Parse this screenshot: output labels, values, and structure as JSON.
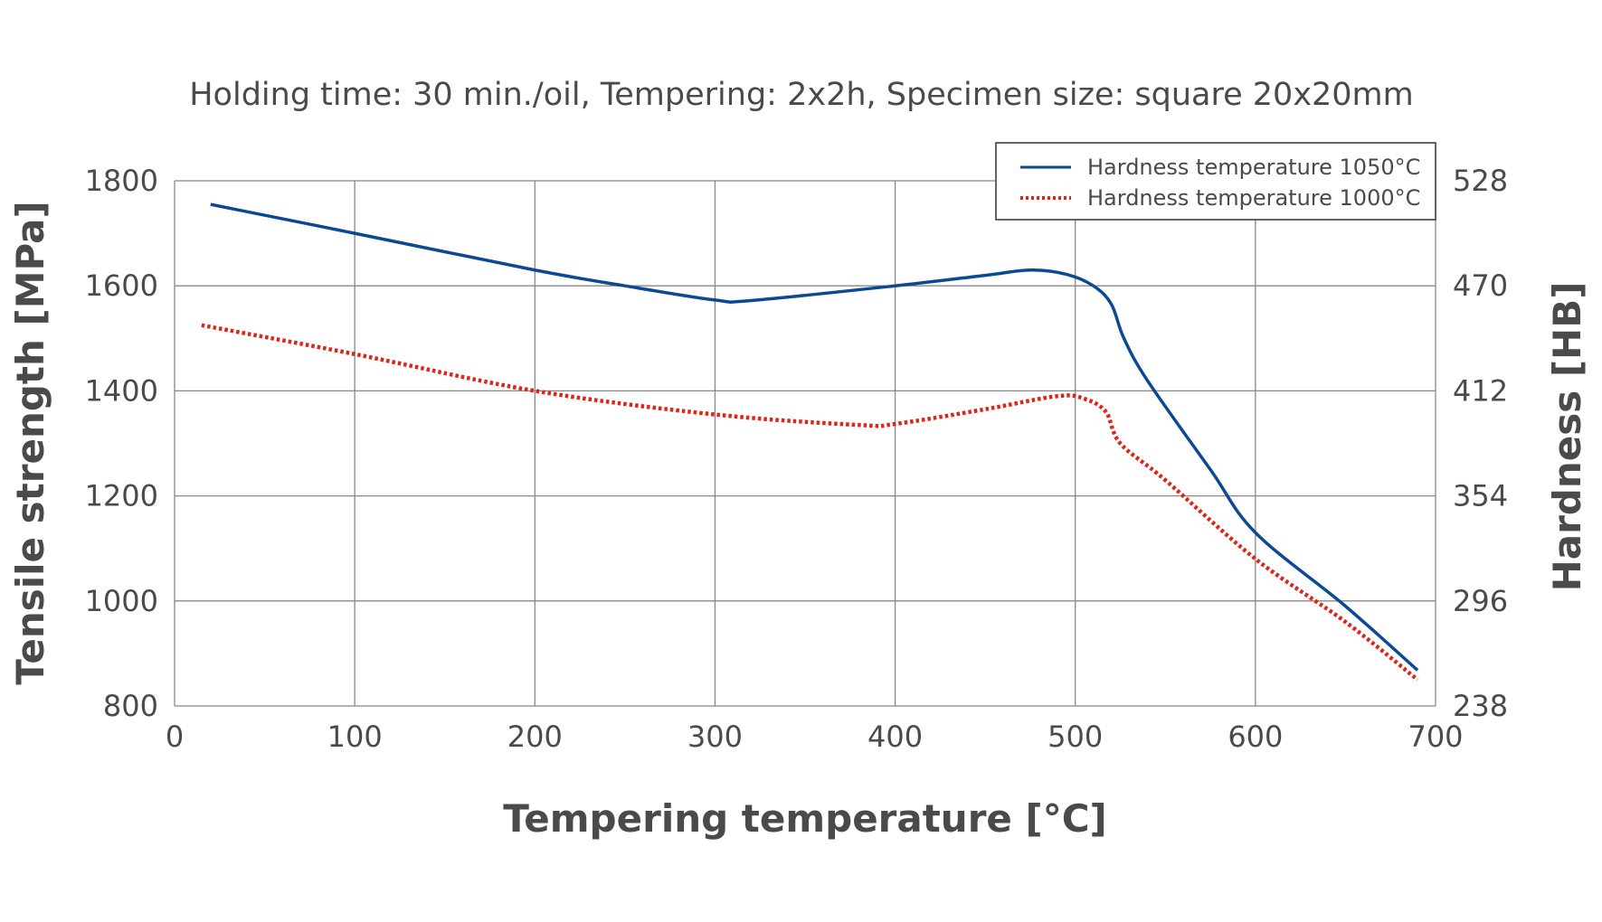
{
  "chart_data": {
    "type": "line",
    "title": "Holding time: 30 min./oil, Tempering: 2x2h, Specimen size: square 20x20mm",
    "xlabel": "Tempering temperature [°C]",
    "ylabel": "Tensile strength [MPa]",
    "y2label": "Hardness [HB]",
    "xlim": [
      0,
      700
    ],
    "ylim": [
      800,
      1800
    ],
    "y2lim": [
      238,
      528
    ],
    "xticks": [
      "0",
      "100",
      "200",
      "300",
      "400",
      "500",
      "600",
      "700"
    ],
    "yticks": [
      "800",
      "1000",
      "1200",
      "1400",
      "1600",
      "1800"
    ],
    "y2ticks": [
      "238",
      "296",
      "354",
      "412",
      "470",
      "528"
    ],
    "grid": true,
    "legend_position": "top-right",
    "series": [
      {
        "name": "Hardness temperature 1050°C",
        "color": "#0b4a93",
        "style": "solid",
        "x": [
          20,
          100,
          200,
          250,
          300,
          320,
          400,
          450,
          475,
          495,
          510,
          520,
          527,
          540,
          575,
          600,
          650,
          690
        ],
        "y": [
          1755,
          1700,
          1630,
          1600,
          1573,
          1572,
          1600,
          1620,
          1630,
          1622,
          1600,
          1565,
          1500,
          1420,
          1250,
          1130,
          990,
          868
        ]
      },
      {
        "name": "Hardness temperature 1000°C",
        "color": "#e02418",
        "style": "dotted",
        "x": [
          15,
          100,
          200,
          300,
          380,
          400,
          450,
          490,
          505,
          517,
          525,
          550,
          600,
          650,
          690
        ],
        "y": [
          1525,
          1470,
          1400,
          1355,
          1335,
          1337,
          1365,
          1390,
          1385,
          1360,
          1300,
          1230,
          1080,
          960,
          850
        ]
      }
    ]
  }
}
